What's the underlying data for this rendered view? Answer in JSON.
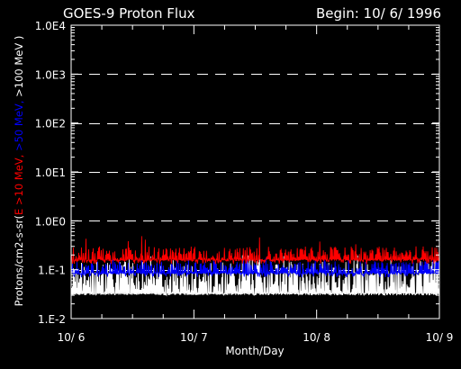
{
  "chart_data": {
    "type": "line",
    "title": "GOES-9 Proton Flux",
    "begin_label": "Begin: 10/ 6/ 1996",
    "xlabel": "Month/Day",
    "ylabel_parts": [
      {
        "text": "Protons/cm2-s-sr(",
        "color": "#ffffff"
      },
      {
        "text": "E >10 MeV,",
        "color": "#ff0000"
      },
      {
        "text": " >50 MeV,",
        "color": "#0000ff"
      },
      {
        "text": " >100 MeV )",
        "color": "#ffffff"
      }
    ],
    "x_ticks": [
      "10/ 6",
      "10/ 7",
      "10/ 8",
      "10/ 9"
    ],
    "xlim": [
      0,
      3
    ],
    "y_ticks": [
      "1.E-2",
      "1.E-1",
      "1.0E0",
      "1.0E1",
      "1.0E2",
      "1.0E3",
      "1.0E4"
    ],
    "y_tick_exponents": [
      -2,
      -1,
      0,
      1,
      2,
      3,
      4
    ],
    "ylim": [
      0.01,
      10000
    ],
    "yscale": "log",
    "grid": "dashed horizontal at each decade",
    "background": "#000000",
    "series": [
      {
        "color": "#ffffff",
        "baseline": 0.03,
        "typical_range": [
          0.03,
          0.15
        ],
        "peak": 0.2
      },
      {
        "color": "#0000ff",
        "baseline": 0.08,
        "typical_range": [
          0.07,
          0.15
        ],
        "peak": 0.2
      },
      {
        "color": "#ff0000",
        "baseline": 0.15,
        "typical_range": [
          0.13,
          0.3
        ],
        "peak": 0.55
      }
    ]
  }
}
